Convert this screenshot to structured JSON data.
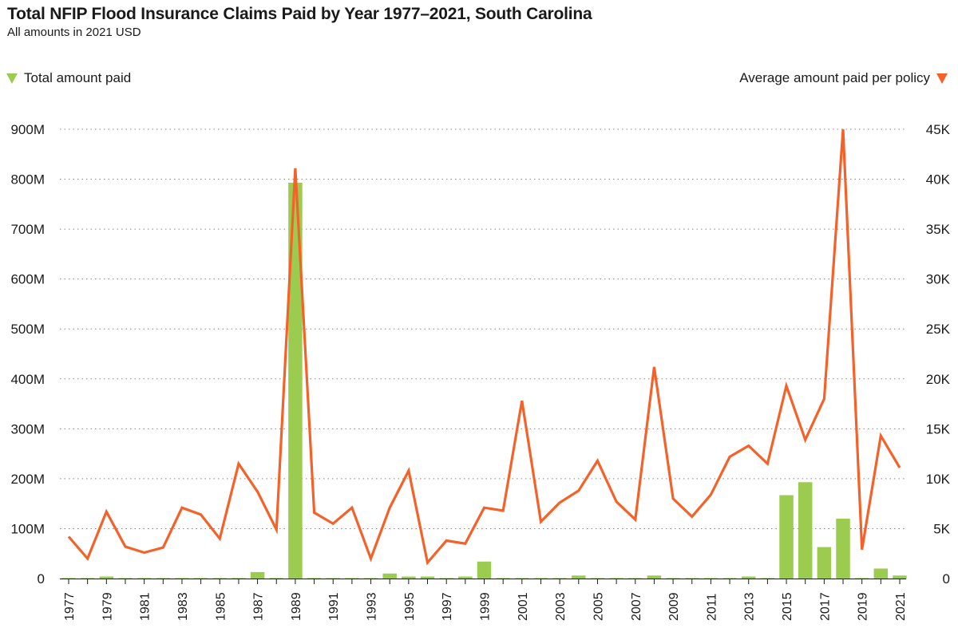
{
  "header": {
    "title": "Total NFIP Flood Insurance Claims Paid by Year 1977–2021, South Carolina",
    "subtitle": "All amounts in 2021 USD"
  },
  "legend": {
    "total_label": "Total amount paid",
    "average_label": "Average amount paid per policy"
  },
  "colors": {
    "bar": "#9ccc4f",
    "line": "#f4622a",
    "grid": "#888888",
    "text": "#1a1a1a"
  },
  "chart_data": {
    "type": "bar",
    "title": "Total NFIP Flood Insurance Claims Paid by Year 1977–2021, South Carolina",
    "subtitle": "All amounts in 2021 USD",
    "x": [
      1977,
      1978,
      1979,
      1980,
      1981,
      1982,
      1983,
      1984,
      1985,
      1986,
      1987,
      1988,
      1989,
      1990,
      1991,
      1992,
      1993,
      1994,
      1995,
      1996,
      1997,
      1998,
      1999,
      2000,
      2001,
      2002,
      2003,
      2004,
      2005,
      2006,
      2007,
      2008,
      2009,
      2010,
      2011,
      2012,
      2013,
      2014,
      2015,
      2016,
      2017,
      2018,
      2019,
      2020,
      2021
    ],
    "x_tick_labels": [
      "1977",
      "1979",
      "1981",
      "1983",
      "1985",
      "1987",
      "1989",
      "1991",
      "1993",
      "1995",
      "1997",
      "1999",
      "2001",
      "2003",
      "2005",
      "2007",
      "2009",
      "2011",
      "2013",
      "2015",
      "2017",
      "2019",
      "2021"
    ],
    "series": [
      {
        "name": "Total amount paid",
        "type": "bar",
        "axis": "left",
        "values": [
          1000000,
          1000000,
          4000000,
          1000000,
          1000000,
          1000000,
          1000000,
          1000000,
          1000000,
          1000000,
          13000000,
          1000000,
          793000000,
          1000000,
          1000000,
          1000000,
          1000000,
          10000000,
          4000000,
          4000000,
          1000000,
          4000000,
          34000000,
          1000000,
          1000000,
          1000000,
          1000000,
          6000000,
          1000000,
          1000000,
          1000000,
          6000000,
          1000000,
          1000000,
          1000000,
          1000000,
          4000000,
          1000000,
          167000000,
          193000000,
          63000000,
          120000000,
          1000000,
          20000000,
          6000000
        ]
      },
      {
        "name": "Average amount paid per policy",
        "type": "line",
        "axis": "right",
        "values": [
          4200,
          2000,
          6700,
          3200,
          2600,
          3100,
          7100,
          6400,
          4000,
          11500,
          8700,
          4900,
          41100,
          6600,
          5500,
          7100,
          2000,
          7100,
          10800,
          1600,
          3800,
          3500,
          7100,
          6800,
          17800,
          5700,
          7600,
          8800,
          11800,
          7700,
          5900,
          21200,
          8000,
          6200,
          8400,
          12200,
          13300,
          11500,
          19300,
          13900,
          18000,
          45000,
          2900,
          14300,
          11100
        ]
      }
    ],
    "y_left": {
      "ylim": [
        0,
        900000000
      ],
      "ticks": [
        0,
        100000000,
        200000000,
        300000000,
        400000000,
        500000000,
        600000000,
        700000000,
        800000000,
        900000000
      ],
      "tick_labels": [
        "0",
        "100M",
        "200M",
        "300M",
        "400M",
        "500M",
        "600M",
        "700M",
        "800M",
        "900M"
      ]
    },
    "y_right": {
      "ylim": [
        0,
        45000
      ],
      "ticks": [
        0,
        5000,
        10000,
        15000,
        20000,
        25000,
        30000,
        35000,
        40000,
        45000
      ],
      "tick_labels": [
        "0",
        "5K",
        "10K",
        "15K",
        "20K",
        "25K",
        "30K",
        "35K",
        "40K",
        "45K"
      ]
    },
    "grid": "horizontal-dotted",
    "legend_placement": "top"
  }
}
